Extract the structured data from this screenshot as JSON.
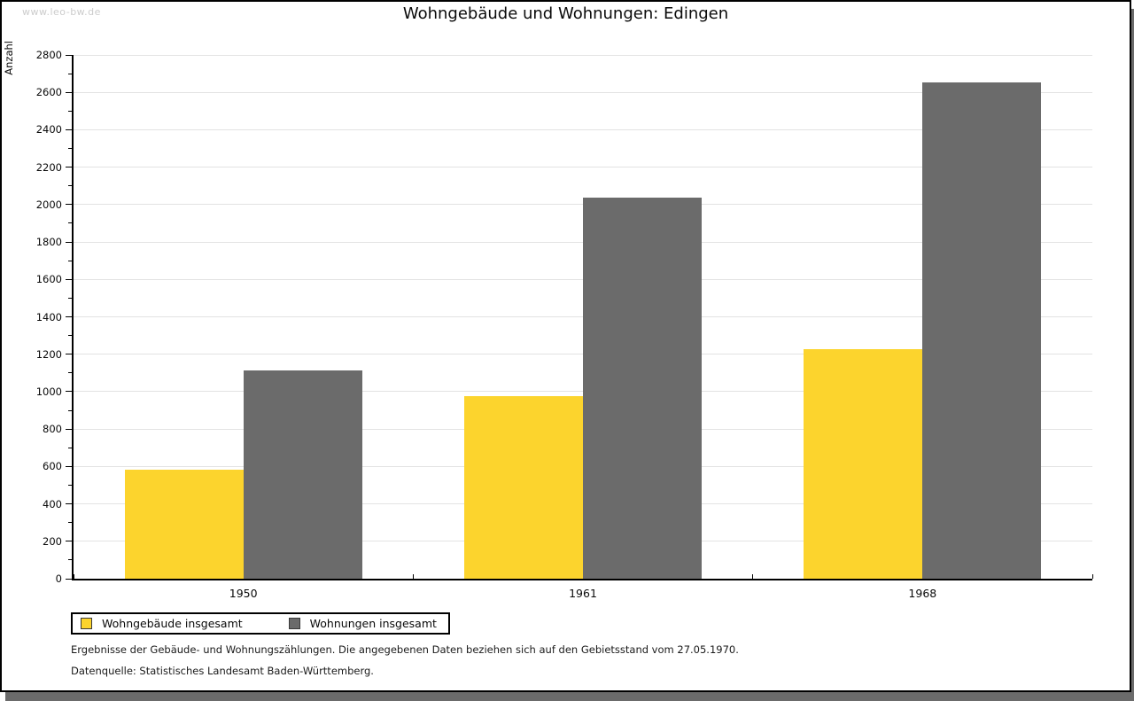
{
  "watermark": "www.leo-bw.de",
  "title": "Wohngebäude und Wohnungen: Edingen",
  "chart_data": {
    "type": "bar",
    "title": "Wohngebäude und Wohnungen: Edingen",
    "xlabel": "",
    "ylabel": "Anzahl",
    "categories": [
      "1950",
      "1961",
      "1968"
    ],
    "series": [
      {
        "name": "Wohngebäude insgesamt",
        "color": "#FCD42D",
        "values": [
          585,
          977,
          1227
        ]
      },
      {
        "name": "Wohnungen insgesamt",
        "color": "#6B6B6B",
        "values": [
          1112,
          2037,
          2653
        ]
      }
    ],
    "ylim": [
      0,
      2800
    ],
    "y_tick_step": 200,
    "y_minor_step": 100,
    "grid": true,
    "gridline_color": "#e3e3e3",
    "legend_position": "bottom-left"
  },
  "footer": {
    "line1": "Ergebnisse der Gebäude- und Wohnungszählungen. Die angegebenen Daten beziehen sich auf den Gebietsstand vom 27.05.1970.",
    "line2": "Datenquelle: Statistisches Landesamt Baden-Württemberg."
  }
}
